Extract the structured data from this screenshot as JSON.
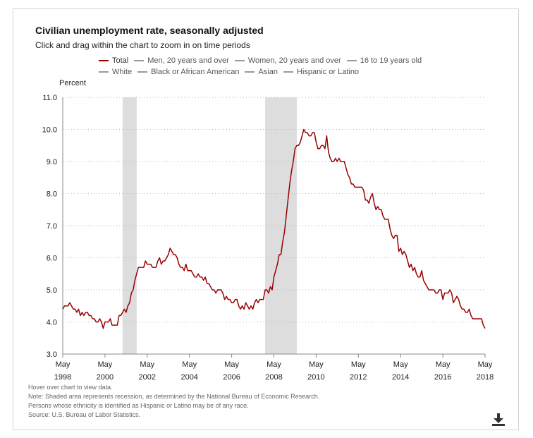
{
  "header": {
    "title": "Civilian unemployment rate, seasonally adjusted",
    "subtitle": "Click and drag within the chart to zoom in on time periods"
  },
  "legend": {
    "row1": [
      "Total",
      "Men, 20 years and over",
      "Women, 20 years and over",
      "16 to 19 years old"
    ],
    "row2": [
      "White",
      "Black or African American",
      "Asian",
      "Hispanic or Latino"
    ],
    "active": "Total"
  },
  "notes": [
    "Hover over chart to view data.",
    "Note: Shaded area represents recession, as determined by the National Bureau of Economic Research.",
    "Persons whose ethnicity is identified as Hispanic or Latino may be of any race.",
    "Source: U.S. Bureau of Labor Statistics."
  ],
  "icons": {
    "download": "download-icon"
  },
  "colors": {
    "line": "#990000",
    "recession": "#dddddd",
    "grid": "#bbbbbb"
  },
  "chart_data": {
    "type": "line",
    "title": "Civilian unemployment rate, seasonally adjusted",
    "ylabel": "Percent",
    "xlabel": "",
    "ylim": [
      3.0,
      11.0
    ],
    "yticks": [
      "3.0",
      "4.0",
      "5.0",
      "6.0",
      "7.0",
      "8.0",
      "9.0",
      "10.0",
      "11.0"
    ],
    "xlim": [
      "1998-05",
      "2018-05"
    ],
    "xticks": [
      {
        "top": "May",
        "bottom": "1998",
        "date": "1998-05"
      },
      {
        "top": "May",
        "bottom": "2000",
        "date": "2000-05"
      },
      {
        "top": "May",
        "bottom": "2002",
        "date": "2002-05"
      },
      {
        "top": "May",
        "bottom": "2004",
        "date": "2004-05"
      },
      {
        "top": "May",
        "bottom": "2006",
        "date": "2006-05"
      },
      {
        "top": "May",
        "bottom": "2008",
        "date": "2008-05"
      },
      {
        "top": "May",
        "bottom": "2010",
        "date": "2010-05"
      },
      {
        "top": "May",
        "bottom": "2012",
        "date": "2012-05"
      },
      {
        "top": "May",
        "bottom": "2014",
        "date": "2014-05"
      },
      {
        "top": "May",
        "bottom": "2016",
        "date": "2016-05"
      },
      {
        "top": "May",
        "bottom": "2018",
        "date": "2018-05"
      }
    ],
    "grid": "horizontal dotted",
    "recessions": [
      {
        "start": "2001-03",
        "end": "2001-11"
      },
      {
        "start": "2007-12",
        "end": "2009-06"
      }
    ],
    "series": [
      {
        "name": "Total",
        "points": [
          [
            "1998-05",
            4.4
          ],
          [
            "1998-06",
            4.5
          ],
          [
            "1998-07",
            4.5
          ],
          [
            "1998-08",
            4.5
          ],
          [
            "1998-09",
            4.6
          ],
          [
            "1998-10",
            4.5
          ],
          [
            "1998-11",
            4.4
          ],
          [
            "1998-12",
            4.4
          ],
          [
            "1999-01",
            4.3
          ],
          [
            "1999-02",
            4.4
          ],
          [
            "1999-03",
            4.2
          ],
          [
            "1999-04",
            4.3
          ],
          [
            "1999-05",
            4.2
          ],
          [
            "1999-06",
            4.3
          ],
          [
            "1999-07",
            4.3
          ],
          [
            "1999-08",
            4.2
          ],
          [
            "1999-09",
            4.2
          ],
          [
            "1999-10",
            4.1
          ],
          [
            "1999-11",
            4.1
          ],
          [
            "1999-12",
            4.0
          ],
          [
            "2000-01",
            4.0
          ],
          [
            "2000-02",
            4.1
          ],
          [
            "2000-03",
            4.0
          ],
          [
            "2000-04",
            3.8
          ],
          [
            "2000-05",
            4.0
          ],
          [
            "2000-06",
            4.0
          ],
          [
            "2000-07",
            4.0
          ],
          [
            "2000-08",
            4.1
          ],
          [
            "2000-09",
            3.9
          ],
          [
            "2000-10",
            3.9
          ],
          [
            "2000-11",
            3.9
          ],
          [
            "2000-12",
            3.9
          ],
          [
            "2001-01",
            4.2
          ],
          [
            "2001-02",
            4.2
          ],
          [
            "2001-03",
            4.3
          ],
          [
            "2001-04",
            4.4
          ],
          [
            "2001-05",
            4.3
          ],
          [
            "2001-06",
            4.5
          ],
          [
            "2001-07",
            4.6
          ],
          [
            "2001-08",
            4.9
          ],
          [
            "2001-09",
            5.0
          ],
          [
            "2001-10",
            5.3
          ],
          [
            "2001-11",
            5.5
          ],
          [
            "2001-12",
            5.7
          ],
          [
            "2002-01",
            5.7
          ],
          [
            "2002-02",
            5.7
          ],
          [
            "2002-03",
            5.7
          ],
          [
            "2002-04",
            5.9
          ],
          [
            "2002-05",
            5.8
          ],
          [
            "2002-06",
            5.8
          ],
          [
            "2002-07",
            5.8
          ],
          [
            "2002-08",
            5.7
          ],
          [
            "2002-09",
            5.7
          ],
          [
            "2002-10",
            5.7
          ],
          [
            "2002-11",
            5.9
          ],
          [
            "2002-12",
            6.0
          ],
          [
            "2003-01",
            5.8
          ],
          [
            "2003-02",
            5.9
          ],
          [
            "2003-03",
            5.9
          ],
          [
            "2003-04",
            6.0
          ],
          [
            "2003-05",
            6.1
          ],
          [
            "2003-06",
            6.3
          ],
          [
            "2003-07",
            6.2
          ],
          [
            "2003-08",
            6.1
          ],
          [
            "2003-09",
            6.1
          ],
          [
            "2003-10",
            6.0
          ],
          [
            "2003-11",
            5.8
          ],
          [
            "2003-12",
            5.7
          ],
          [
            "2004-01",
            5.7
          ],
          [
            "2004-02",
            5.6
          ],
          [
            "2004-03",
            5.8
          ],
          [
            "2004-04",
            5.6
          ],
          [
            "2004-05",
            5.6
          ],
          [
            "2004-06",
            5.6
          ],
          [
            "2004-07",
            5.5
          ],
          [
            "2004-08",
            5.4
          ],
          [
            "2004-09",
            5.4
          ],
          [
            "2004-10",
            5.5
          ],
          [
            "2004-11",
            5.4
          ],
          [
            "2004-12",
            5.4
          ],
          [
            "2005-01",
            5.3
          ],
          [
            "2005-02",
            5.4
          ],
          [
            "2005-03",
            5.2
          ],
          [
            "2005-04",
            5.2
          ],
          [
            "2005-05",
            5.1
          ],
          [
            "2005-06",
            5.0
          ],
          [
            "2005-07",
            5.0
          ],
          [
            "2005-08",
            4.9
          ],
          [
            "2005-09",
            5.0
          ],
          [
            "2005-10",
            5.0
          ],
          [
            "2005-11",
            5.0
          ],
          [
            "2005-12",
            4.9
          ],
          [
            "2006-01",
            4.7
          ],
          [
            "2006-02",
            4.8
          ],
          [
            "2006-03",
            4.7
          ],
          [
            "2006-04",
            4.7
          ],
          [
            "2006-05",
            4.6
          ],
          [
            "2006-06",
            4.6
          ],
          [
            "2006-07",
            4.7
          ],
          [
            "2006-08",
            4.7
          ],
          [
            "2006-09",
            4.5
          ],
          [
            "2006-10",
            4.4
          ],
          [
            "2006-11",
            4.5
          ],
          [
            "2006-12",
            4.4
          ],
          [
            "2007-01",
            4.6
          ],
          [
            "2007-02",
            4.5
          ],
          [
            "2007-03",
            4.4
          ],
          [
            "2007-04",
            4.5
          ],
          [
            "2007-05",
            4.4
          ],
          [
            "2007-06",
            4.6
          ],
          [
            "2007-07",
            4.7
          ],
          [
            "2007-08",
            4.6
          ],
          [
            "2007-09",
            4.7
          ],
          [
            "2007-10",
            4.7
          ],
          [
            "2007-11",
            4.7
          ],
          [
            "2007-12",
            5.0
          ],
          [
            "2008-01",
            5.0
          ],
          [
            "2008-02",
            4.9
          ],
          [
            "2008-03",
            5.1
          ],
          [
            "2008-04",
            5.0
          ],
          [
            "2008-05",
            5.4
          ],
          [
            "2008-06",
            5.6
          ],
          [
            "2008-07",
            5.8
          ],
          [
            "2008-08",
            6.1
          ],
          [
            "2008-09",
            6.1
          ],
          [
            "2008-10",
            6.5
          ],
          [
            "2008-11",
            6.8
          ],
          [
            "2008-12",
            7.3
          ],
          [
            "2009-01",
            7.8
          ],
          [
            "2009-02",
            8.3
          ],
          [
            "2009-03",
            8.7
          ],
          [
            "2009-04",
            9.0
          ],
          [
            "2009-05",
            9.4
          ],
          [
            "2009-06",
            9.5
          ],
          [
            "2009-07",
            9.5
          ],
          [
            "2009-08",
            9.6
          ],
          [
            "2009-09",
            9.8
          ],
          [
            "2009-10",
            10.0
          ],
          [
            "2009-11",
            9.9
          ],
          [
            "2009-12",
            9.9
          ],
          [
            "2010-01",
            9.8
          ],
          [
            "2010-02",
            9.8
          ],
          [
            "2010-03",
            9.9
          ],
          [
            "2010-04",
            9.9
          ],
          [
            "2010-05",
            9.6
          ],
          [
            "2010-06",
            9.4
          ],
          [
            "2010-07",
            9.4
          ],
          [
            "2010-08",
            9.5
          ],
          [
            "2010-09",
            9.5
          ],
          [
            "2010-10",
            9.4
          ],
          [
            "2010-11",
            9.8
          ],
          [
            "2010-12",
            9.3
          ],
          [
            "2011-01",
            9.1
          ],
          [
            "2011-02",
            9.0
          ],
          [
            "2011-03",
            9.0
          ],
          [
            "2011-04",
            9.1
          ],
          [
            "2011-05",
            9.0
          ],
          [
            "2011-06",
            9.1
          ],
          [
            "2011-07",
            9.0
          ],
          [
            "2011-08",
            9.0
          ],
          [
            "2011-09",
            9.0
          ],
          [
            "2011-10",
            8.8
          ],
          [
            "2011-11",
            8.6
          ],
          [
            "2011-12",
            8.5
          ],
          [
            "2012-01",
            8.3
          ],
          [
            "2012-02",
            8.3
          ],
          [
            "2012-03",
            8.2
          ],
          [
            "2012-04",
            8.2
          ],
          [
            "2012-05",
            8.2
          ],
          [
            "2012-06",
            8.2
          ],
          [
            "2012-07",
            8.2
          ],
          [
            "2012-08",
            8.1
          ],
          [
            "2012-09",
            7.8
          ],
          [
            "2012-10",
            7.8
          ],
          [
            "2012-11",
            7.7
          ],
          [
            "2012-12",
            7.9
          ],
          [
            "2013-01",
            8.0
          ],
          [
            "2013-02",
            7.7
          ],
          [
            "2013-03",
            7.5
          ],
          [
            "2013-04",
            7.6
          ],
          [
            "2013-05",
            7.5
          ],
          [
            "2013-06",
            7.5
          ],
          [
            "2013-07",
            7.3
          ],
          [
            "2013-08",
            7.2
          ],
          [
            "2013-09",
            7.2
          ],
          [
            "2013-10",
            7.2
          ],
          [
            "2013-11",
            6.9
          ],
          [
            "2013-12",
            6.7
          ],
          [
            "2014-01",
            6.6
          ],
          [
            "2014-02",
            6.7
          ],
          [
            "2014-03",
            6.7
          ],
          [
            "2014-04",
            6.2
          ],
          [
            "2014-05",
            6.3
          ],
          [
            "2014-06",
            6.1
          ],
          [
            "2014-07",
            6.2
          ],
          [
            "2014-08",
            6.1
          ],
          [
            "2014-09",
            5.9
          ],
          [
            "2014-10",
            5.7
          ],
          [
            "2014-11",
            5.8
          ],
          [
            "2014-12",
            5.6
          ],
          [
            "2015-01",
            5.7
          ],
          [
            "2015-02",
            5.5
          ],
          [
            "2015-03",
            5.4
          ],
          [
            "2015-04",
            5.4
          ],
          [
            "2015-05",
            5.6
          ],
          [
            "2015-06",
            5.3
          ],
          [
            "2015-07",
            5.2
          ],
          [
            "2015-08",
            5.1
          ],
          [
            "2015-09",
            5.0
          ],
          [
            "2015-10",
            5.0
          ],
          [
            "2015-11",
            5.0
          ],
          [
            "2015-12",
            5.0
          ],
          [
            "2016-01",
            4.9
          ],
          [
            "2016-02",
            4.9
          ],
          [
            "2016-03",
            5.0
          ],
          [
            "2016-04",
            5.0
          ],
          [
            "2016-05",
            4.7
          ],
          [
            "2016-06",
            4.9
          ],
          [
            "2016-07",
            4.9
          ],
          [
            "2016-08",
            4.9
          ],
          [
            "2016-09",
            5.0
          ],
          [
            "2016-10",
            4.9
          ],
          [
            "2016-11",
            4.6
          ],
          [
            "2016-12",
            4.7
          ],
          [
            "2017-01",
            4.8
          ],
          [
            "2017-02",
            4.7
          ],
          [
            "2017-03",
            4.5
          ],
          [
            "2017-04",
            4.4
          ],
          [
            "2017-05",
            4.4
          ],
          [
            "2017-06",
            4.3
          ],
          [
            "2017-07",
            4.3
          ],
          [
            "2017-08",
            4.4
          ],
          [
            "2017-09",
            4.2
          ],
          [
            "2017-10",
            4.1
          ],
          [
            "2017-11",
            4.1
          ],
          [
            "2017-12",
            4.1
          ],
          [
            "2018-01",
            4.1
          ],
          [
            "2018-02",
            4.1
          ],
          [
            "2018-03",
            4.1
          ],
          [
            "2018-04",
            3.9
          ],
          [
            "2018-05",
            3.8
          ]
        ]
      }
    ]
  }
}
